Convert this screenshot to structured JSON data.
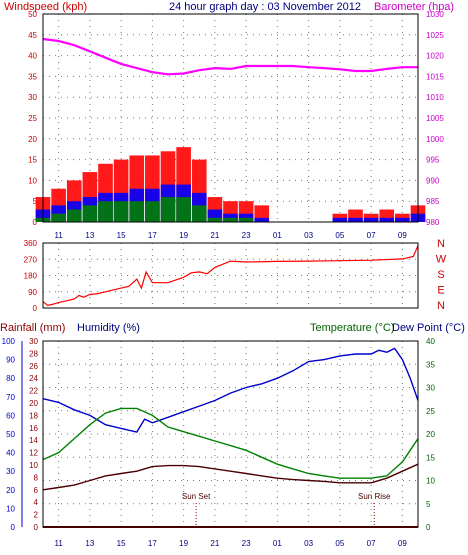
{
  "colors": {
    "wind_red": "#ff0000",
    "wind_blue": "#0000ff",
    "wind_green": "#008000",
    "barometer": "#ff00ff",
    "direction": "#ff0000",
    "rainfall": "#8b0000",
    "humidity": "#0000cc",
    "temperature": "#008000",
    "dewpoint": "#4b0000",
    "rain_axis": "#8b0000",
    "text_red": "#cc0000",
    "text_blue": "#000080",
    "text_green": "#006400"
  },
  "header": {
    "left": "Windspeed (kph)",
    "center": "24 hour graph day : 03 November 2012",
    "right": "Barometer (hpa)"
  },
  "bottom_header": {
    "rainfall": "Rainfall (mm)",
    "humidity": "Humidity (%)",
    "temperature": "Temperature (°C)",
    "dewpoint": "Dew Point (°C)"
  },
  "chart_data": [
    {
      "id": "wind_baro",
      "type": "line",
      "x_ticks": [
        "11",
        "13",
        "15",
        "17",
        "19",
        "21",
        "23",
        "01",
        "03",
        "05",
        "07",
        "09"
      ],
      "x": [
        0,
        1,
        2,
        3,
        4,
        5,
        6,
        7,
        8,
        9,
        10,
        11,
        12,
        13,
        14,
        15,
        16,
        17,
        18,
        19,
        20,
        21,
        22,
        23,
        24
      ],
      "yleft_label": "Windspeed (kph)",
      "yleft_ticks": [
        0,
        5,
        10,
        15,
        20,
        25,
        30,
        35,
        40,
        45,
        50
      ],
      "yleft_lim": [
        0,
        50
      ],
      "yright_label": "Barometer (hpa)",
      "yright_ticks": [
        980,
        985,
        990,
        995,
        1000,
        1005,
        1010,
        1015,
        1020,
        1025,
        1030
      ],
      "yright_lim": [
        980,
        1030
      ],
      "series": [
        {
          "name": "Windspeed (kph)",
          "color_key": "wind_red",
          "values": [
            6,
            8,
            10,
            12,
            14,
            15,
            16,
            16,
            17,
            18,
            15,
            6,
            5,
            5,
            4,
            0,
            0,
            0,
            0,
            2,
            3,
            2,
            3,
            2,
            4
          ]
        },
        {
          "color_key": "wind_blue",
          "values": [
            3,
            4,
            5,
            6,
            7,
            7,
            8,
            8,
            9,
            9,
            7,
            3,
            2,
            2,
            1,
            0,
            0,
            0,
            0,
            1,
            1,
            1,
            1,
            1,
            2
          ]
        },
        {
          "color_key": "wind_green",
          "values": [
            1,
            2,
            3,
            4,
            5,
            5,
            5,
            5,
            6,
            6,
            4,
            1,
            1,
            1,
            0,
            0,
            0,
            0,
            0,
            0,
            0,
            0,
            0,
            0,
            0
          ]
        },
        {
          "name": "Barometer (hpa)",
          "color_key": "barometer",
          "axis": "right",
          "values": [
            1024,
            1023.5,
            1022.5,
            1021,
            1019.5,
            1018,
            1017,
            1016,
            1015.5,
            1015.7,
            1016.5,
            1017,
            1016.8,
            1017.5,
            1017.5,
            1017.5,
            1017.5,
            1017.2,
            1017,
            1016.7,
            1016.3,
            1016.3,
            1016.8,
            1017.2,
            1017.2
          ]
        }
      ]
    },
    {
      "id": "wind_direction",
      "type": "line",
      "y_ticks": [
        0,
        90,
        180,
        270,
        360
      ],
      "y_lim": [
        0,
        360
      ],
      "compass_labels": [
        "N",
        "W",
        "S",
        "E",
        "N"
      ],
      "series": [
        {
          "color_key": "direction",
          "x": [
            0,
            0.3,
            0.6,
            1,
            1.5,
            2,
            2.3,
            2.6,
            3,
            3.5,
            4,
            4.5,
            5,
            5.5,
            6,
            6.3,
            6.6,
            7,
            8,
            9,
            9.5,
            10,
            10.5,
            11,
            12,
            13,
            15,
            17,
            19,
            21,
            23,
            23.7,
            24
          ],
          "values": [
            35,
            15,
            20,
            30,
            40,
            50,
            70,
            60,
            75,
            80,
            90,
            100,
            110,
            120,
            160,
            110,
            200,
            140,
            140,
            170,
            195,
            200,
            190,
            225,
            260,
            255,
            258,
            260,
            262,
            265,
            272,
            285,
            345
          ]
        }
      ]
    },
    {
      "id": "temp_hum_rain",
      "type": "line",
      "y_rain_label": "Rainfall (mm)",
      "y_rain_ticks": [
        0,
        2,
        4,
        6,
        8,
        10,
        12,
        14,
        16,
        18,
        20,
        22,
        24,
        26,
        28,
        30
      ],
      "y_rain_lim": [
        0,
        30
      ],
      "y_hum_label": "Humidity (%)",
      "y_hum_ticks": [
        0,
        10,
        20,
        30,
        40,
        50,
        60,
        70,
        80,
        90,
        100
      ],
      "y_hum_lim": [
        0,
        100
      ],
      "y_temp_label": "Temperature (°C)",
      "y_temp_ticks": [
        0,
        5,
        10,
        15,
        20,
        25,
        30,
        35,
        40
      ],
      "y_temp_lim": [
        0,
        40
      ],
      "annotations": [
        {
          "text": "Sun Set",
          "x": 9.8
        },
        {
          "text": "Sun Rise",
          "x": 21.2
        }
      ],
      "series": [
        {
          "name": "Humidity (%)",
          "color_key": "humidity",
          "axis": "humidity",
          "x": [
            0,
            1,
            2,
            3,
            4,
            5,
            6,
            6.5,
            7,
            8,
            9,
            10,
            11,
            12,
            13,
            14,
            15,
            16,
            17,
            18,
            19,
            20,
            21,
            21.5,
            22,
            22.5,
            23,
            23.5,
            24
          ],
          "values": [
            69,
            67,
            63,
            60,
            55,
            53,
            51,
            58,
            56,
            59,
            62,
            65,
            68,
            72,
            75,
            77,
            80,
            84,
            89,
            90,
            92,
            93,
            93,
            95,
            94,
            96,
            90,
            80,
            68
          ]
        },
        {
          "name": "Temperature (°C)",
          "color_key": "temperature",
          "axis": "temp",
          "x": [
            0,
            1,
            2,
            3,
            4,
            5,
            6,
            7,
            8,
            9,
            10,
            11,
            12,
            13,
            14,
            15,
            16,
            17,
            18,
            19,
            20,
            21,
            22,
            23,
            23.5,
            24
          ],
          "values": [
            14.5,
            16,
            19,
            22,
            24.5,
            25.5,
            25.5,
            24,
            21.5,
            20.5,
            19.5,
            18.5,
            17.5,
            16.5,
            15,
            13.5,
            12.5,
            11.5,
            11,
            10.5,
            10.5,
            10.5,
            11,
            14,
            16.5,
            19
          ]
        },
        {
          "name": "Dew Point (°C)",
          "color_key": "dewpoint",
          "axis": "temp",
          "x": [
            0,
            1,
            2,
            3,
            4,
            5,
            6,
            7,
            8,
            9,
            10,
            11,
            12,
            13,
            14,
            15,
            16,
            17,
            18,
            19,
            20,
            21,
            22,
            23,
            24
          ],
          "values": [
            8,
            8.5,
            9,
            10,
            11,
            11.5,
            12,
            13,
            13.2,
            13.2,
            13,
            12.5,
            12,
            11.5,
            11,
            10.5,
            10.2,
            10,
            9.8,
            9.5,
            9.5,
            9.5,
            10.5,
            12,
            13.5
          ]
        },
        {
          "name": "Rainfall (mm)",
          "color_key": "rainfall",
          "axis": "rain",
          "x": [
            0,
            24
          ],
          "values": [
            0,
            0
          ]
        }
      ]
    }
  ]
}
